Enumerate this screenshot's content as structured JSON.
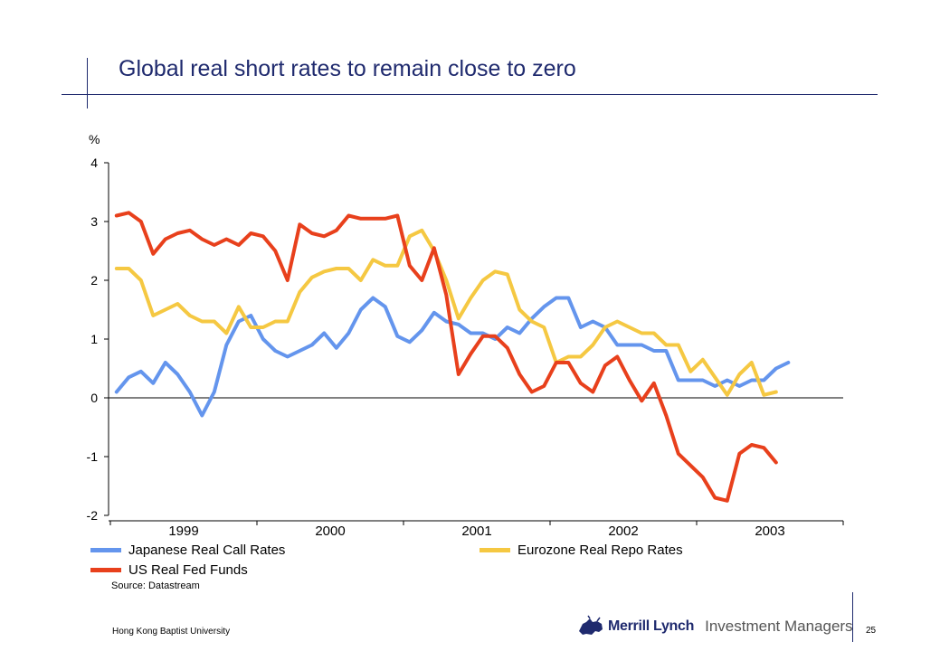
{
  "title": "Global real short rates to remain close to zero",
  "source": "Source:  Datastream",
  "footer": {
    "university": "Hong Kong Baptist University",
    "page": "25"
  },
  "logo": {
    "brand": "Merrill Lynch",
    "division": "Investment Managers",
    "icon": "bull-icon"
  },
  "colors": {
    "japan": "#6495ed",
    "eurozone": "#f5c842",
    "us": "#e8401c",
    "title": "#1f2a6e"
  },
  "chart_data": {
    "type": "line",
    "ylabel": "%",
    "ylim": [
      -2,
      4
    ],
    "yticks": [
      "4",
      "3",
      "2",
      "1",
      "0",
      "-1",
      "-2"
    ],
    "xlim": [
      0,
      60
    ],
    "year_labels": [
      "1999",
      "2000",
      "2001",
      "2002",
      "2003"
    ],
    "grid": false,
    "legend": "bottom",
    "series": [
      {
        "name": "Japanese Real Call Rates",
        "color": "#6495ed",
        "values": [
          0.1,
          0.35,
          0.45,
          0.25,
          0.6,
          0.4,
          0.1,
          -0.3,
          0.1,
          0.9,
          1.3,
          1.4,
          1.0,
          0.8,
          0.7,
          0.8,
          0.9,
          1.1,
          0.85,
          1.1,
          1.5,
          1.7,
          1.55,
          1.05,
          0.95,
          1.15,
          1.45,
          1.3,
          1.25,
          1.1,
          1.1,
          1.0,
          1.2,
          1.1,
          1.35,
          1.55,
          1.7,
          1.7,
          1.2,
          1.3,
          1.2,
          0.9,
          0.9,
          0.9,
          0.8,
          0.8,
          0.3,
          0.3,
          0.3,
          0.2,
          0.3,
          0.2,
          0.3,
          0.3,
          0.5,
          0.6
        ]
      },
      {
        "name": "Eurozone Real Repo Rates",
        "color": "#f5c842",
        "values": [
          2.2,
          2.2,
          2.0,
          1.4,
          1.5,
          1.6,
          1.4,
          1.3,
          1.3,
          1.1,
          1.55,
          1.2,
          1.2,
          1.3,
          1.3,
          1.8,
          2.05,
          2.15,
          2.2,
          2.2,
          2.0,
          2.35,
          2.25,
          2.25,
          2.75,
          2.85,
          2.5,
          2.0,
          1.35,
          1.7,
          2.0,
          2.15,
          2.1,
          1.5,
          1.3,
          1.2,
          0.6,
          0.7,
          0.7,
          0.9,
          1.2,
          1.3,
          1.2,
          1.1,
          1.1,
          0.9,
          0.9,
          0.45,
          0.65,
          0.35,
          0.05,
          0.4,
          0.6,
          0.05,
          0.1
        ]
      },
      {
        "name": "US Real Fed Funds",
        "color": "#e8401c",
        "values": [
          3.1,
          3.15,
          3.0,
          2.45,
          2.7,
          2.8,
          2.85,
          2.7,
          2.6,
          2.7,
          2.6,
          2.8,
          2.75,
          2.5,
          2.0,
          2.95,
          2.8,
          2.75,
          2.85,
          3.1,
          3.05,
          3.05,
          3.05,
          3.1,
          2.25,
          2.0,
          2.55,
          1.75,
          0.4,
          0.75,
          1.05,
          1.05,
          0.85,
          0.4,
          0.1,
          0.2,
          0.6,
          0.6,
          0.25,
          0.1,
          0.55,
          0.7,
          0.3,
          -0.05,
          0.25,
          -0.3,
          -0.95,
          -1.15,
          -1.35,
          -1.7,
          -1.75,
          -0.95,
          -0.8,
          -0.85,
          -1.1
        ]
      }
    ]
  }
}
